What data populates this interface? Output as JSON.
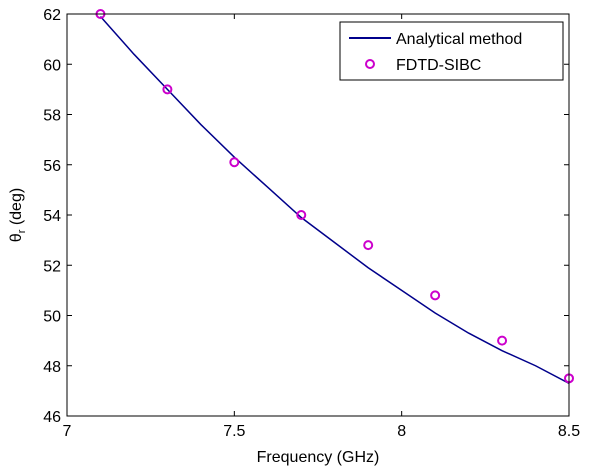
{
  "chart_data": {
    "type": "line",
    "xlabel": "Frequency (GHz)",
    "ylabel_symbol": "θ",
    "ylabel_subscript": "r",
    "ylabel_unit": " (deg)",
    "xlim": [
      7,
      8.5
    ],
    "ylim": [
      46,
      62
    ],
    "xticks": [
      "7",
      "7.5",
      "8",
      "8.5"
    ],
    "xtick_values": [
      7,
      7.5,
      8,
      8.5
    ],
    "yticks": [
      "46",
      "48",
      "50",
      "52",
      "54",
      "56",
      "58",
      "60",
      "62"
    ],
    "ytick_values": [
      46,
      48,
      50,
      52,
      54,
      56,
      58,
      60,
      62
    ],
    "grid": false,
    "legend_position": "top-right",
    "series": [
      {
        "name": "Analytical method",
        "style": "line",
        "color": "#00008b",
        "x": [
          7.1,
          7.2,
          7.3,
          7.4,
          7.5,
          7.6,
          7.7,
          7.8,
          7.9,
          8.0,
          8.1,
          8.2,
          8.3,
          8.4,
          8.5
        ],
        "y": [
          61.9,
          60.4,
          59.0,
          57.6,
          56.3,
          55.1,
          53.9,
          52.9,
          51.9,
          51.0,
          50.1,
          49.3,
          48.6,
          48.0,
          47.3
        ]
      },
      {
        "name": "FDTD-SIBC",
        "style": "marker",
        "color": "#cc00cc",
        "x": [
          7.1,
          7.3,
          7.5,
          7.7,
          7.9,
          8.1,
          8.3,
          8.5
        ],
        "y": [
          62.0,
          59.0,
          56.1,
          54.0,
          52.8,
          50.8,
          49.0,
          47.5
        ]
      }
    ]
  }
}
